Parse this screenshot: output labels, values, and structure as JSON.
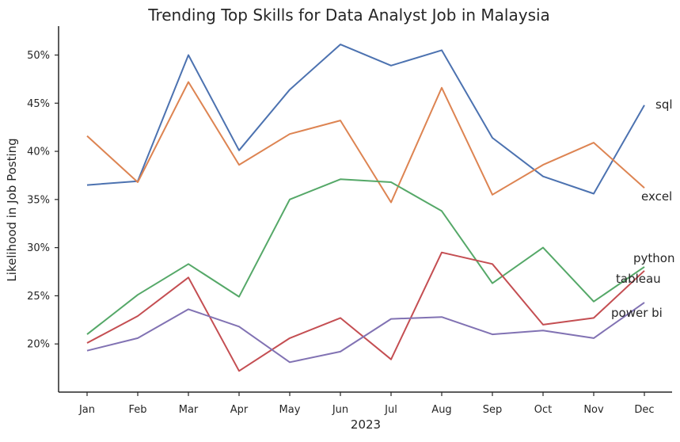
{
  "chart_data": {
    "type": "line",
    "title": "Trending Top Skills for Data Analyst Job in Malaysia",
    "xlabel": "2023",
    "ylabel": "Likelihood in Job Posting",
    "categories": [
      "Jan",
      "Feb",
      "Mar",
      "Apr",
      "May",
      "Jun",
      "Jul",
      "Aug",
      "Sep",
      "Oct",
      "Nov",
      "Dec"
    ],
    "y_ticks": [
      20,
      25,
      30,
      35,
      40,
      45,
      50
    ],
    "y_tick_labels": [
      "20%",
      "25%",
      "30%",
      "35%",
      "40%",
      "45%",
      "50%"
    ],
    "ylim": [
      15,
      53
    ],
    "grid": false,
    "legend": "inline labels at line ends",
    "series": [
      {
        "name": "sql",
        "color": "#4c72b0",
        "values": [
          36.5,
          36.9,
          50.0,
          40.1,
          46.4,
          51.1,
          48.9,
          50.5,
          41.4,
          37.4,
          35.6,
          44.8
        ]
      },
      {
        "name": "excel",
        "color": "#dd8452",
        "values": [
          41.6,
          36.8,
          47.2,
          38.6,
          41.8,
          43.2,
          34.7,
          46.6,
          35.5,
          38.6,
          40.9,
          36.2
        ]
      },
      {
        "name": "python",
        "color": "#55a868",
        "values": [
          21.0,
          25.1,
          28.3,
          24.9,
          35.0,
          37.1,
          36.8,
          33.8,
          26.3,
          30.0,
          24.4,
          28.0
        ]
      },
      {
        "name": "tableau",
        "color": "#c44e52",
        "values": [
          20.1,
          22.9,
          26.9,
          17.2,
          20.6,
          22.7,
          18.4,
          29.5,
          28.3,
          22.0,
          22.7,
          27.6
        ]
      },
      {
        "name": "power bi",
        "color": "#8172b3",
        "values": [
          19.3,
          20.6,
          23.6,
          21.8,
          18.1,
          19.2,
          22.6,
          22.8,
          21.0,
          21.4,
          20.6,
          24.3
        ]
      }
    ]
  }
}
